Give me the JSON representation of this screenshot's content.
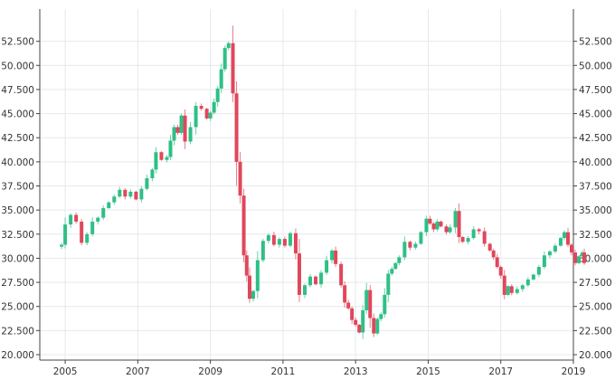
{
  "chart_data": {
    "type": "candlestick",
    "title": "",
    "xlabel": "",
    "ylabel": "",
    "grid": true,
    "y_axis": {
      "min": 20000,
      "max": 55000,
      "ticks": [
        "20.000",
        "22.500",
        "25.000",
        "27.500",
        "30.000",
        "32.500",
        "35.000",
        "37.500",
        "40.000",
        "42.500",
        "45.000",
        "47.500",
        "50.000",
        "52.500"
      ],
      "both_sides": true
    },
    "x_axis": {
      "min": 2004.3,
      "max": 2019.0,
      "ticks": [
        "2005",
        "2007",
        "2009",
        "2011",
        "2013",
        "2015",
        "2017",
        "2019"
      ]
    },
    "colors": {
      "up": "#2fbf86",
      "down": "#e0475b",
      "grid": "#e4e9ee",
      "axis": "#444444",
      "text": "#333333"
    },
    "close_series": [
      [
        2004.75,
        31200
      ],
      [
        2004.9,
        31400
      ],
      [
        2005.0,
        33500
      ],
      [
        2005.15,
        34500
      ],
      [
        2005.3,
        33800
      ],
      [
        2005.45,
        31600
      ],
      [
        2005.6,
        32500
      ],
      [
        2005.75,
        33800
      ],
      [
        2005.9,
        34200
      ],
      [
        2006.05,
        35200
      ],
      [
        2006.2,
        35800
      ],
      [
        2006.35,
        36400
      ],
      [
        2006.5,
        37100
      ],
      [
        2006.65,
        36400
      ],
      [
        2006.8,
        36900
      ],
      [
        2006.95,
        36100
      ],
      [
        2007.1,
        37200
      ],
      [
        2007.25,
        38300
      ],
      [
        2007.4,
        39200
      ],
      [
        2007.5,
        41000
      ],
      [
        2007.65,
        40200
      ],
      [
        2007.8,
        40500
      ],
      [
        2007.9,
        42200
      ],
      [
        2008.0,
        43600
      ],
      [
        2008.1,
        43000
      ],
      [
        2008.2,
        44800
      ],
      [
        2008.3,
        42100
      ],
      [
        2008.45,
        43600
      ],
      [
        2008.6,
        45800
      ],
      [
        2008.75,
        45500
      ],
      [
        2008.9,
        44500
      ],
      [
        2009.0,
        45100
      ],
      [
        2009.1,
        46200
      ],
      [
        2009.2,
        47600
      ],
      [
        2009.3,
        49600
      ],
      [
        2009.4,
        51800
      ],
      [
        2009.5,
        52300
      ],
      [
        2009.62,
        47100
      ],
      [
        2009.72,
        40000
      ],
      [
        2009.82,
        36500
      ],
      [
        2009.92,
        30300
      ],
      [
        2010.0,
        28200
      ],
      [
        2010.08,
        25800
      ],
      [
        2010.18,
        26600
      ],
      [
        2010.3,
        29800
      ],
      [
        2010.45,
        31800
      ],
      [
        2010.6,
        32400
      ],
      [
        2010.75,
        31400
      ],
      [
        2010.9,
        32000
      ],
      [
        2011.05,
        31300
      ],
      [
        2011.2,
        32600
      ],
      [
        2011.35,
        30500
      ],
      [
        2011.45,
        26200
      ],
      [
        2011.6,
        27200
      ],
      [
        2011.75,
        28100
      ],
      [
        2011.9,
        27300
      ],
      [
        2012.05,
        28500
      ],
      [
        2012.2,
        29800
      ],
      [
        2012.35,
        30800
      ],
      [
        2012.45,
        29400
      ],
      [
        2012.6,
        27200
      ],
      [
        2012.7,
        25400
      ],
      [
        2012.8,
        24800
      ],
      [
        2012.9,
        23600
      ],
      [
        2013.0,
        23100
      ],
      [
        2013.1,
        22300
      ],
      [
        2013.2,
        24600
      ],
      [
        2013.3,
        26700
      ],
      [
        2013.4,
        23800
      ],
      [
        2013.5,
        22200
      ],
      [
        2013.6,
        23700
      ],
      [
        2013.7,
        24200
      ],
      [
        2013.8,
        26200
      ],
      [
        2013.9,
        28400
      ],
      [
        2014.0,
        28900
      ],
      [
        2014.1,
        29500
      ],
      [
        2014.2,
        30100
      ],
      [
        2014.35,
        31700
      ],
      [
        2014.5,
        31100
      ],
      [
        2014.65,
        31500
      ],
      [
        2014.8,
        32700
      ],
      [
        2014.95,
        34100
      ],
      [
        2015.05,
        33600
      ],
      [
        2015.15,
        33000
      ],
      [
        2015.25,
        33800
      ],
      [
        2015.35,
        33300
      ],
      [
        2015.5,
        32700
      ],
      [
        2015.6,
        33200
      ],
      [
        2015.75,
        34900
      ],
      [
        2015.85,
        32200
      ],
      [
        2015.95,
        31700
      ],
      [
        2016.1,
        32100
      ],
      [
        2016.25,
        33000
      ],
      [
        2016.4,
        32800
      ],
      [
        2016.55,
        31500
      ],
      [
        2016.7,
        30800
      ],
      [
        2016.8,
        30100
      ],
      [
        2016.9,
        29100
      ],
      [
        2017.0,
        28200
      ],
      [
        2017.1,
        26200
      ],
      [
        2017.2,
        27100
      ],
      [
        2017.3,
        26400
      ],
      [
        2017.45,
        26800
      ],
      [
        2017.6,
        27200
      ],
      [
        2017.75,
        27800
      ],
      [
        2017.9,
        28300
      ],
      [
        2018.05,
        29100
      ],
      [
        2018.2,
        30300
      ],
      [
        2018.35,
        30700
      ],
      [
        2018.5,
        31300
      ],
      [
        2018.65,
        32100
      ],
      [
        2018.75,
        32700
      ],
      [
        2018.85,
        31400
      ],
      [
        2018.95,
        30600
      ],
      [
        2019.05,
        29500
      ],
      [
        2019.15,
        30200
      ],
      [
        2019.25,
        30600
      ],
      [
        2019.3,
        29500
      ]
    ]
  }
}
